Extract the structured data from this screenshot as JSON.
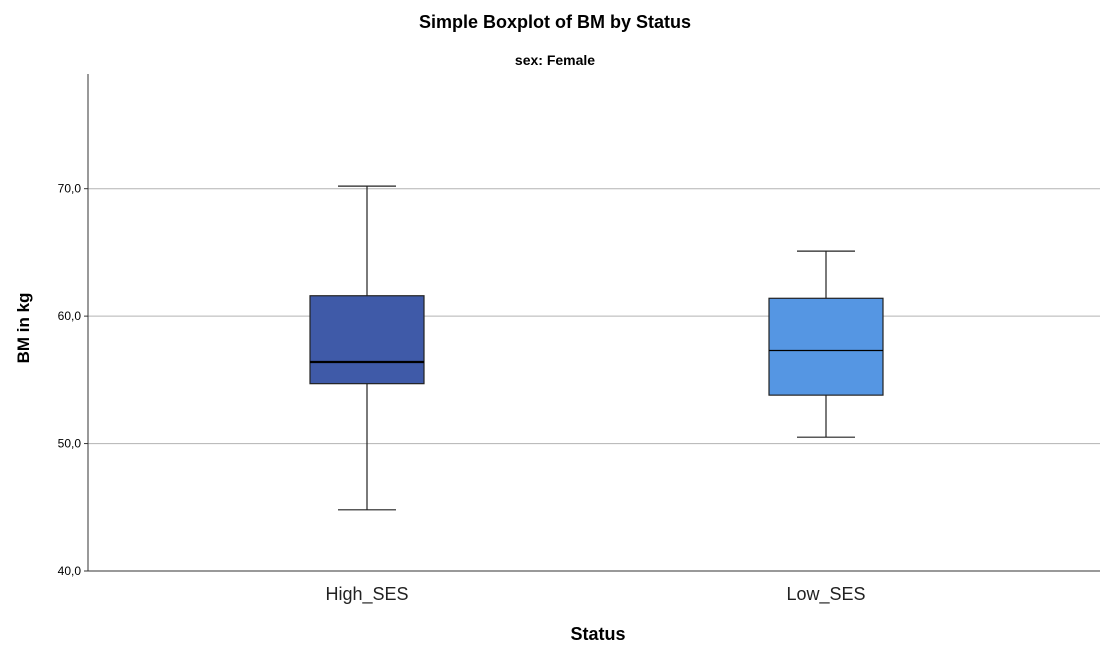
{
  "chart_data": {
    "type": "boxplot",
    "title": "Simple Boxplot of BM by Status",
    "subtitle": "sex: Female",
    "xlabel": "Status",
    "ylabel": "BM in kg",
    "ylim": [
      40,
      79
    ],
    "yticks": [
      40,
      50,
      60,
      70
    ],
    "ytick_labels": [
      "40,0",
      "50,0",
      "60,0",
      "70,0"
    ],
    "grid": true,
    "categories": [
      "High_SES",
      "Low_SES"
    ],
    "colors": [
      "#3f5aa8",
      "#5596e3"
    ],
    "boxes": [
      {
        "label": "High_SES",
        "min": 44.8,
        "q1": 54.7,
        "median": 56.4,
        "q3": 61.6,
        "max": 70.2
      },
      {
        "label": "Low_SES",
        "min": 50.5,
        "q1": 53.8,
        "median": 57.3,
        "q3": 61.4,
        "max": 65.1
      }
    ]
  }
}
